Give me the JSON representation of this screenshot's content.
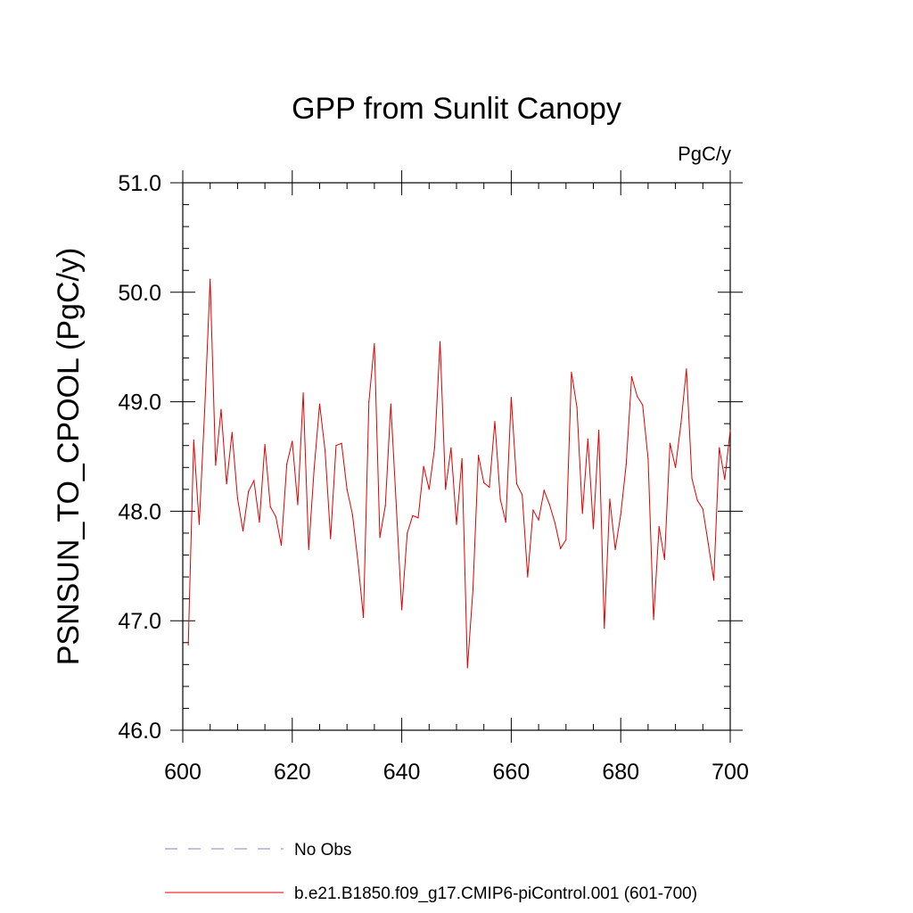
{
  "chart_data": {
    "type": "line",
    "title": "GPP from Sunlit Canopy",
    "units_label": "PgC/y",
    "xlabel": "",
    "ylabel": "PSNSUN_TO_CPOOL  (PgC/y)",
    "xlim": [
      600,
      700
    ],
    "ylim": [
      46.0,
      51.0
    ],
    "x_ticks": [
      600,
      620,
      640,
      660,
      680,
      700
    ],
    "x_tick_labels": [
      "600",
      "620",
      "640",
      "660",
      "680",
      "700"
    ],
    "y_ticks": [
      46.0,
      47.0,
      48.0,
      49.0,
      50.0,
      51.0
    ],
    "y_tick_labels": [
      "46.0",
      "47.0",
      "48.0",
      "49.0",
      "50.0",
      "51.0"
    ],
    "grid": false,
    "legend_position": "bottom",
    "legend": [
      {
        "name": "No Obs",
        "color": "#8a80c8",
        "style": "dashed"
      },
      {
        "name": "b.e21.B1850.f09_g17.CMIP6-piControl.001 (601-700)",
        "color": "#e00000",
        "style": "solid"
      }
    ],
    "series": [
      {
        "name": "b.e21.B1850.f09_g17.CMIP6-piControl.001 (601-700)",
        "color": "#e00000",
        "x": [
          601,
          602,
          603,
          604,
          605,
          606,
          607,
          608,
          609,
          610,
          611,
          612,
          613,
          614,
          615,
          616,
          617,
          618,
          619,
          620,
          621,
          622,
          623,
          624,
          625,
          626,
          627,
          628,
          629,
          630,
          631,
          632,
          633,
          634,
          635,
          636,
          637,
          638,
          639,
          640,
          641,
          642,
          643,
          644,
          645,
          646,
          647,
          648,
          649,
          650,
          651,
          652,
          653,
          654,
          655,
          656,
          657,
          658,
          659,
          660,
          661,
          662,
          663,
          664,
          665,
          666,
          667,
          668,
          669,
          670,
          671,
          672,
          673,
          674,
          675,
          676,
          677,
          678,
          679,
          680,
          681,
          682,
          683,
          684,
          685,
          686,
          687,
          688,
          689,
          690,
          691,
          692,
          693,
          694,
          695,
          696,
          697,
          698,
          699,
          700
        ],
        "y": [
          46.78,
          48.65,
          47.88,
          48.92,
          50.12,
          48.42,
          48.93,
          48.25,
          48.72,
          48.12,
          47.82,
          48.18,
          48.28,
          47.9,
          48.61,
          48.04,
          47.95,
          47.69,
          48.43,
          48.64,
          48.06,
          49.08,
          47.65,
          48.39,
          48.98,
          48.55,
          47.75,
          48.6,
          48.62,
          48.2,
          47.97,
          47.54,
          47.03,
          49.0,
          49.53,
          47.76,
          48.05,
          48.98,
          48.05,
          47.1,
          47.8,
          47.96,
          47.94,
          48.41,
          48.2,
          48.58,
          49.55,
          48.2,
          48.58,
          47.88,
          48.48,
          46.57,
          47.28,
          48.51,
          48.26,
          48.22,
          48.82,
          48.11,
          47.9,
          49.04,
          48.25,
          48.15,
          47.4,
          48.01,
          47.92,
          48.19,
          48.06,
          47.89,
          47.66,
          47.74,
          49.27,
          48.95,
          47.98,
          48.66,
          47.84,
          48.74,
          46.93,
          48.11,
          47.65,
          47.97,
          48.43,
          49.23,
          49.05,
          48.97,
          48.48,
          47.01,
          47.86,
          47.56,
          48.62,
          48.4,
          48.8,
          49.3,
          48.3,
          48.1,
          48.02,
          47.7,
          47.37,
          48.58,
          48.29,
          48.74
        ]
      }
    ]
  }
}
